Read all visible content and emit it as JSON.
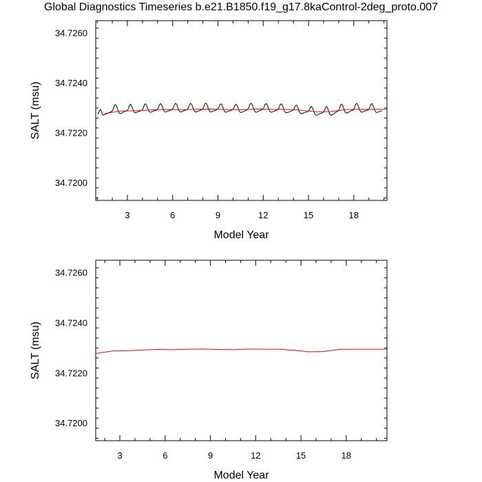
{
  "title": "Global Diagnostics Timeseries b.e21.B1850.f19_g17.8kaControl-2deg_proto.007",
  "chart_data": [
    {
      "type": "line",
      "xlabel": "Model Year",
      "ylabel": "SALT (msu)",
      "xlim": [
        0.9,
        20.2
      ],
      "ylim": [
        34.7193,
        34.7265
      ],
      "xticks": [
        3,
        6,
        9,
        12,
        15,
        18
      ],
      "yticks": [
        34.72,
        34.722,
        34.724,
        34.726
      ],
      "ytick_labels": [
        "34.7200",
        "34.7220",
        "34.7240",
        "34.7260"
      ],
      "series": [
        {
          "style": "monthly",
          "color": "#000000",
          "start_year": 1.04,
          "step_years": 0.0833,
          "values": [
            34.72275,
            34.72285,
            34.72295,
            34.72285,
            34.72272,
            34.72273,
            34.72275,
            34.72277,
            34.7228,
            34.72282,
            34.72284,
            34.72286,
            34.72293,
            34.72308,
            34.72314,
            34.72306,
            34.72291,
            34.72279,
            34.72278,
            34.7228,
            34.72283,
            34.72285,
            34.72287,
            34.72288,
            34.72295,
            34.72309,
            34.72315,
            34.72307,
            34.72293,
            34.72282,
            34.72281,
            34.72283,
            34.72285,
            34.72287,
            34.72289,
            34.72291,
            34.72298,
            34.72312,
            34.72317,
            34.72309,
            34.72295,
            34.72284,
            34.72283,
            34.72285,
            34.72287,
            34.72289,
            34.7229,
            34.72292,
            34.72299,
            34.72313,
            34.72318,
            34.7231,
            34.72296,
            34.72285,
            34.72284,
            34.72286,
            34.72288,
            34.7229,
            34.72292,
            34.72293,
            34.723,
            34.72314,
            34.72319,
            34.72311,
            34.72296,
            34.72286,
            34.72284,
            34.72286,
            34.72288,
            34.7229,
            34.72292,
            34.72294,
            34.723,
            34.72314,
            34.72319,
            34.72311,
            34.72296,
            34.72286,
            34.72284,
            34.72286,
            34.72288,
            34.7229,
            34.72292,
            34.72294,
            34.72301,
            34.72315,
            34.7232,
            34.72312,
            34.72297,
            34.72286,
            34.72284,
            34.72286,
            34.72288,
            34.7229,
            34.72292,
            34.72294,
            34.723,
            34.72313,
            34.72317,
            34.7231,
            34.72295,
            34.72285,
            34.72283,
            34.72285,
            34.72287,
            34.72289,
            34.72291,
            34.72293,
            34.72298,
            34.7231,
            34.72315,
            34.72308,
            34.72294,
            34.72284,
            34.72282,
            34.72284,
            34.72286,
            34.72289,
            34.72291,
            34.72293,
            34.72301,
            34.72315,
            34.72319,
            34.72311,
            34.72296,
            34.72285,
            34.72283,
            34.72285,
            34.72287,
            34.7229,
            34.72292,
            34.72294,
            34.72301,
            34.72315,
            34.72318,
            34.7231,
            34.72295,
            34.72285,
            34.72283,
            34.72285,
            34.72287,
            34.72289,
            34.72291,
            34.72293,
            34.72299,
            34.72313,
            34.72317,
            34.72309,
            34.72294,
            34.72283,
            34.72281,
            34.72282,
            34.72284,
            34.72286,
            34.72288,
            34.7229,
            34.72296,
            34.72308,
            34.72312,
            34.72303,
            34.72289,
            34.72279,
            34.72277,
            34.72279,
            34.72281,
            34.72283,
            34.72284,
            34.72285,
            34.7229,
            34.72303,
            34.72306,
            34.72298,
            34.72284,
            34.72273,
            34.72271,
            34.72273,
            34.72276,
            34.72278,
            34.7228,
            34.72281,
            34.72288,
            34.72302,
            34.72306,
            34.72297,
            34.72282,
            34.72272,
            34.72271,
            34.72274,
            34.72278,
            34.72282,
            34.72285,
            34.72287,
            34.72295,
            34.72311,
            34.72316,
            34.72307,
            34.72292,
            34.72281,
            34.7228,
            34.72282,
            34.72285,
            34.72288,
            34.7229,
            34.72292,
            34.72299,
            34.72314,
            34.72319,
            34.72311,
            34.72296,
            34.72285,
            34.72283,
            34.72285,
            34.72287,
            34.72289,
            34.72291,
            34.72292,
            34.72298,
            34.72313,
            34.72318,
            34.72309,
            34.72294,
            34.72284,
            34.72282,
            34.72284,
            34.72286,
            34.72288,
            34.72289
          ]
        },
        {
          "style": "annual",
          "color": "#ff0000",
          "x": [
            1.5,
            2.5,
            3.5,
            4.5,
            5.5,
            6.5,
            7.5,
            8.5,
            9.5,
            10.5,
            11.5,
            12.5,
            13.5,
            14.5,
            15.5,
            16.5,
            17.5,
            18.5,
            19.5,
            20.2
          ],
          "values": [
            34.72278,
            34.72288,
            34.72289,
            34.72292,
            34.72294,
            34.72293,
            34.72295,
            34.72296,
            34.72294,
            34.72293,
            34.72296,
            34.72295,
            34.72295,
            34.72291,
            34.72285,
            34.72286,
            34.72294,
            34.72295,
            34.72295,
            34.72295
          ]
        }
      ]
    },
    {
      "type": "line",
      "xlabel": "Model Year",
      "ylabel": "SALT (msu)",
      "xlim": [
        1.4,
        20.7
      ],
      "ylim": [
        34.7193,
        34.7265
      ],
      "xticks": [
        3,
        6,
        9,
        12,
        15,
        18
      ],
      "yticks": [
        34.72,
        34.722,
        34.724,
        34.726
      ],
      "ytick_labels": [
        "34.7200",
        "34.7220",
        "34.7240",
        "34.7260"
      ],
      "series": [
        {
          "style": "annual",
          "color": "#ff0000",
          "x": [
            1.4,
            2.5,
            3.5,
            4.5,
            5.5,
            6.5,
            7.5,
            8.5,
            9.5,
            10.5,
            11.5,
            12.5,
            13.5,
            14.5,
            15.5,
            16.5,
            17.5,
            18.5,
            19.5,
            20.7
          ],
          "values": [
            34.72278,
            34.72288,
            34.72289,
            34.72292,
            34.72294,
            34.72293,
            34.72295,
            34.72296,
            34.72294,
            34.72293,
            34.72296,
            34.72295,
            34.72295,
            34.72291,
            34.72285,
            34.72286,
            34.72294,
            34.72295,
            34.72295,
            34.72295
          ]
        }
      ]
    }
  ]
}
